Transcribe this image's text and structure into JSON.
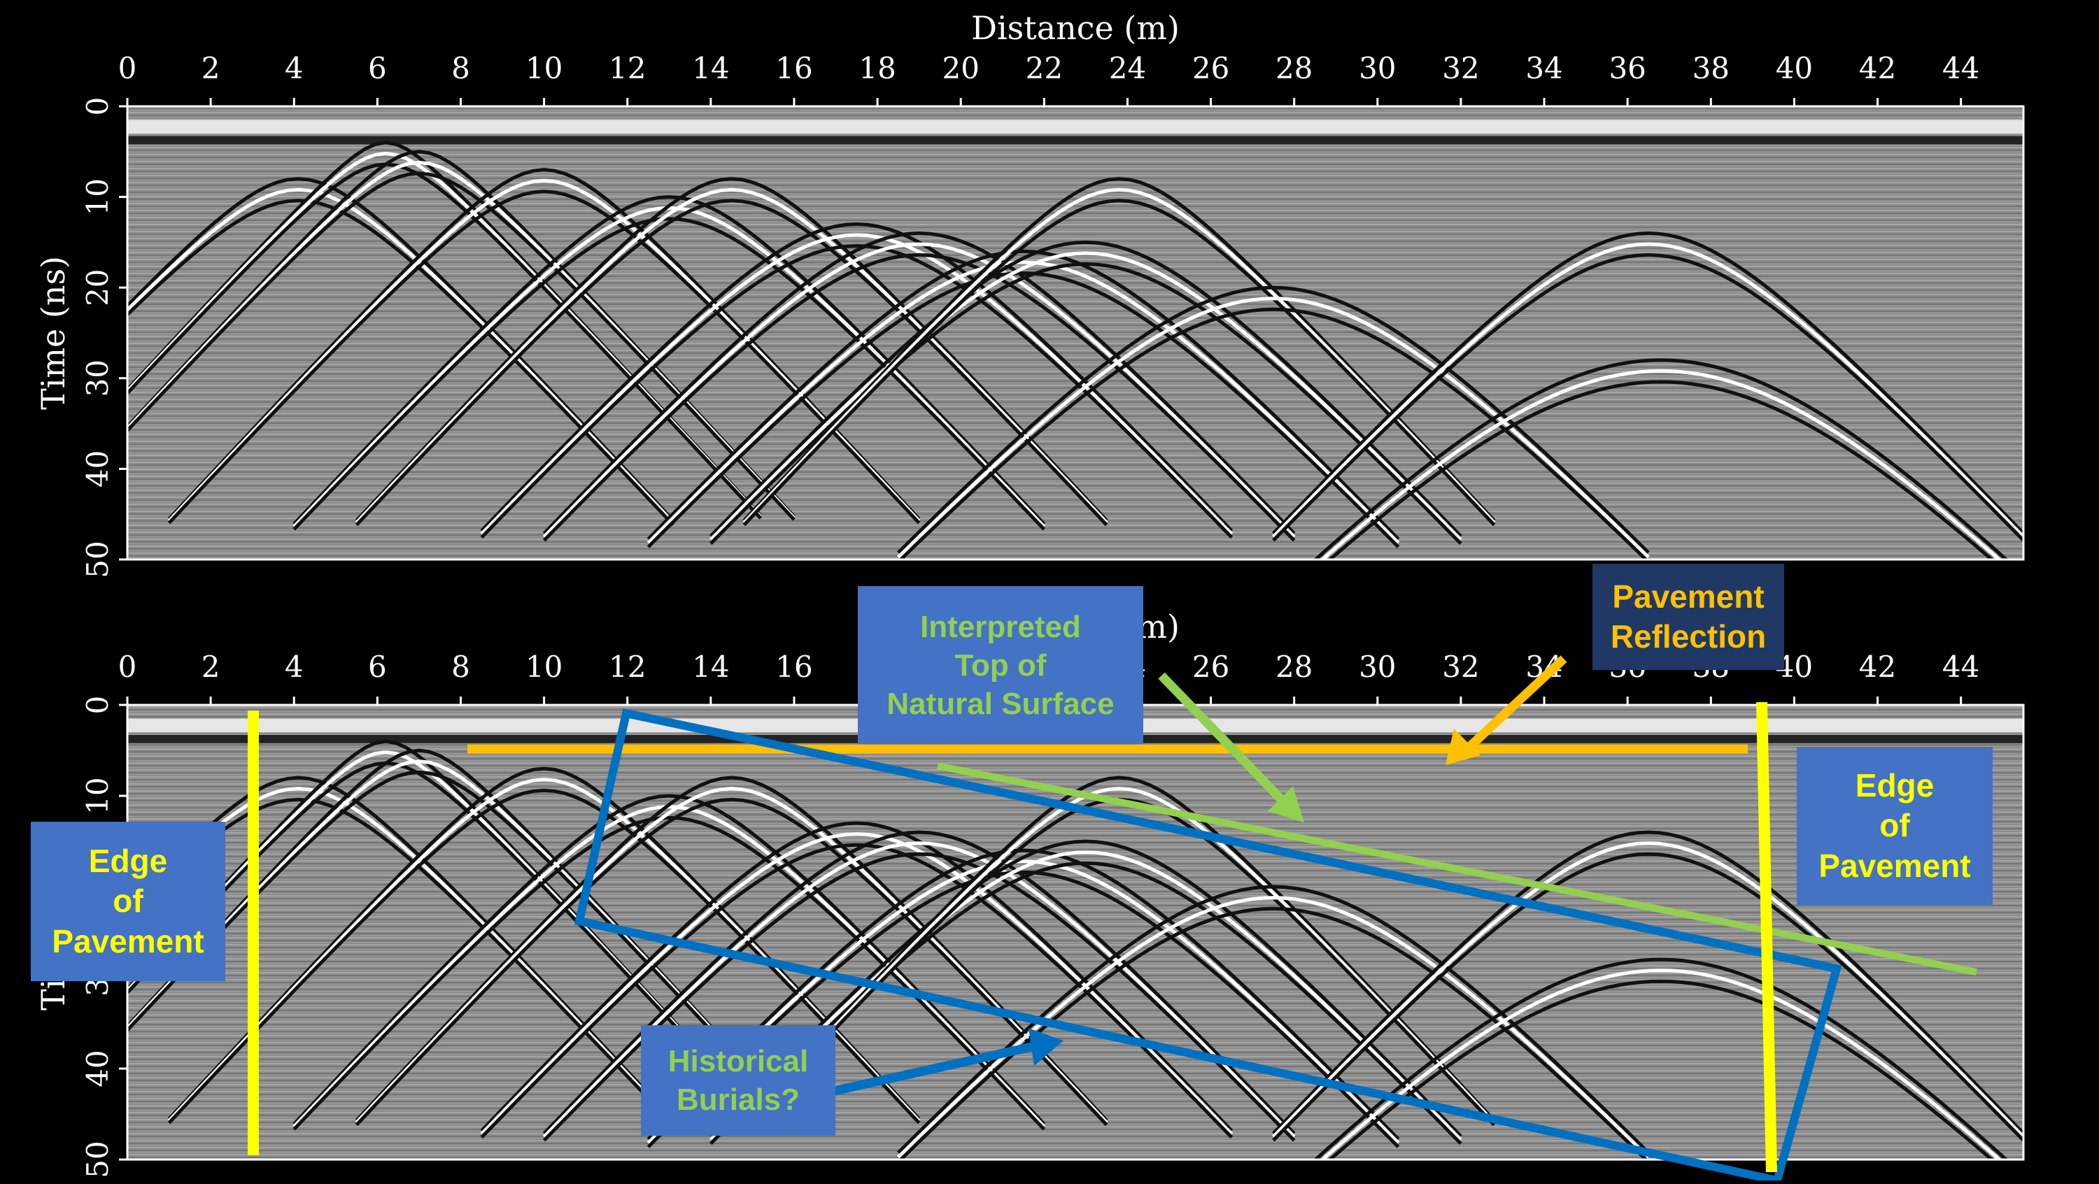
{
  "colors": {
    "background": "#000000",
    "edge_lines": "#ffff00",
    "pavement_line": "#ffc000",
    "natural_surface_line": "#92d050",
    "burial_box": "#0070c0",
    "label_box_blue": "#4472c4",
    "label_box_navy": "#203864"
  },
  "panels": [
    {
      "name": "raw-profile",
      "xlabel": "Distance (m)",
      "ylabel": "Time (ns)",
      "xticks": [
        "0",
        "2",
        "4",
        "6",
        "8",
        "10",
        "12",
        "14",
        "16",
        "18",
        "20",
        "22",
        "24",
        "26",
        "28",
        "30",
        "32",
        "34",
        "36",
        "38",
        "40",
        "42",
        "44"
      ],
      "yticks": [
        "0",
        "10",
        "20",
        "30",
        "40",
        "50"
      ],
      "xlim": [
        0,
        45.5
      ],
      "ylim": [
        0,
        50
      ]
    },
    {
      "name": "interpreted-profile",
      "xlabel": "Distance (m)",
      "ylabel": "Time (ns)",
      "xticks": [
        "0",
        "2",
        "4",
        "6",
        "8",
        "10",
        "12",
        "14",
        "16",
        "18",
        "20",
        "22",
        "24",
        "26",
        "28",
        "30",
        "32",
        "34",
        "36",
        "38",
        "40",
        "42",
        "44"
      ],
      "yticks": [
        "0",
        "10",
        "20",
        "30",
        "40",
        "50"
      ],
      "xlim": [
        0,
        45.5
      ],
      "ylim": [
        0,
        50
      ]
    }
  ],
  "hyperbolas": [
    {
      "x": 4.1,
      "t": 8
    },
    {
      "x": 6.2,
      "t": 4
    },
    {
      "x": 7.0,
      "t": 5
    },
    {
      "x": 10.0,
      "t": 7
    },
    {
      "x": 13.0,
      "t": 10
    },
    {
      "x": 14.5,
      "t": 8
    },
    {
      "x": 17.5,
      "t": 13
    },
    {
      "x": 19.0,
      "t": 14
    },
    {
      "x": 21.5,
      "t": 16
    },
    {
      "x": 23.0,
      "t": 15
    },
    {
      "x": 23.8,
      "t": 8
    },
    {
      "x": 27.5,
      "t": 20
    },
    {
      "x": 36.5,
      "t": 14
    },
    {
      "x": 36.8,
      "t": 28
    }
  ],
  "annotations": {
    "edge_left": [
      "Edge",
      "of",
      "Pavement"
    ],
    "edge_right": [
      "Edge",
      "of",
      "Pavement"
    ],
    "natural_surface": [
      "Interpreted",
      "Top of",
      "Natural Surface"
    ],
    "pavement_reflection": [
      "Pavement",
      "Reflection"
    ],
    "burials": [
      "Historical",
      "Burials?"
    ]
  }
}
